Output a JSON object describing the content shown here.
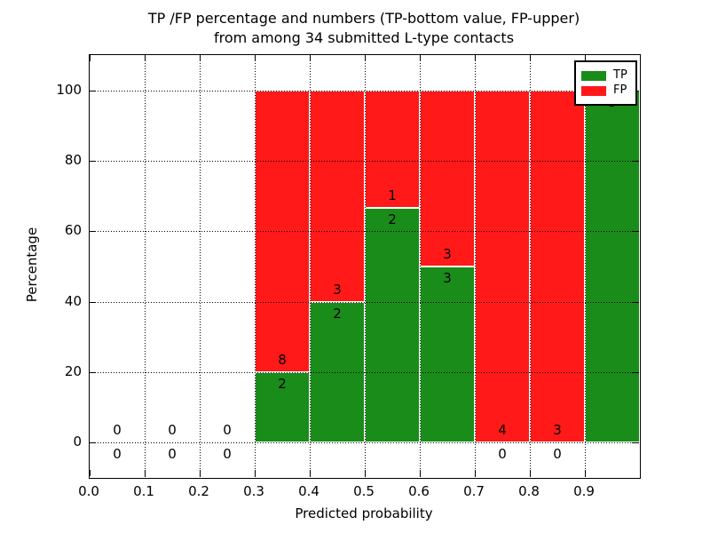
{
  "title": {
    "line1": "TP /FP percentage and numbers (TP-bottom value, FP-upper)",
    "line2": "from among 34 submitted L-type contacts"
  },
  "axes": {
    "xlabel": "Predicted probability",
    "ylabel": "Percentage"
  },
  "legend": {
    "position": "upper right",
    "items": [
      {
        "label": "TP",
        "color": "#198c19"
      },
      {
        "label": "FP",
        "color": "#ff1919"
      }
    ]
  },
  "chart_data": {
    "type": "bar",
    "subtype": "stacked-percentage",
    "title": "TP /FP percentage and numbers (TP-bottom value, FP-upper) from among 34 submitted L-type contacts",
    "xlabel": "Predicted probability",
    "ylabel": "Percentage",
    "xlim": [
      0.0,
      1.0
    ],
    "ylim": [
      -10,
      110
    ],
    "x_ticks": [
      "0.0",
      "0.1",
      "0.2",
      "0.3",
      "0.4",
      "0.5",
      "0.6",
      "0.7",
      "0.8",
      "0.9"
    ],
    "y_ticks": [
      0,
      20,
      40,
      60,
      80,
      100
    ],
    "bin_width": 0.1,
    "grid": "dotted",
    "total_contacts": 34,
    "series": [
      {
        "name": "TP",
        "color": "#198c19",
        "values": [
          0,
          0,
          0,
          2,
          2,
          2,
          3,
          0,
          0,
          3
        ]
      },
      {
        "name": "FP",
        "color": "#ff1919",
        "values": [
          0,
          0,
          0,
          8,
          3,
          1,
          3,
          4,
          3,
          0
        ]
      }
    ],
    "bins": [
      {
        "range": [
          0.0,
          0.1
        ],
        "tp": 0,
        "fp": 0,
        "tp_pct": null
      },
      {
        "range": [
          0.1,
          0.2
        ],
        "tp": 0,
        "fp": 0,
        "tp_pct": null
      },
      {
        "range": [
          0.2,
          0.3
        ],
        "tp": 0,
        "fp": 0,
        "tp_pct": null
      },
      {
        "range": [
          0.3,
          0.4
        ],
        "tp": 2,
        "fp": 8,
        "tp_pct": 20.0
      },
      {
        "range": [
          0.4,
          0.5
        ],
        "tp": 2,
        "fp": 3,
        "tp_pct": 40.0
      },
      {
        "range": [
          0.5,
          0.6
        ],
        "tp": 2,
        "fp": 1,
        "tp_pct": 66.7
      },
      {
        "range": [
          0.6,
          0.7
        ],
        "tp": 3,
        "fp": 3,
        "tp_pct": 50.0
      },
      {
        "range": [
          0.7,
          0.8
        ],
        "tp": 0,
        "fp": 4,
        "tp_pct": 0.0
      },
      {
        "range": [
          0.8,
          0.9
        ],
        "tp": 0,
        "fp": 3,
        "tp_pct": 0.0
      },
      {
        "range": [
          0.9,
          1.0
        ],
        "tp": 3,
        "fp": 0,
        "tp_pct": 100.0
      }
    ]
  }
}
